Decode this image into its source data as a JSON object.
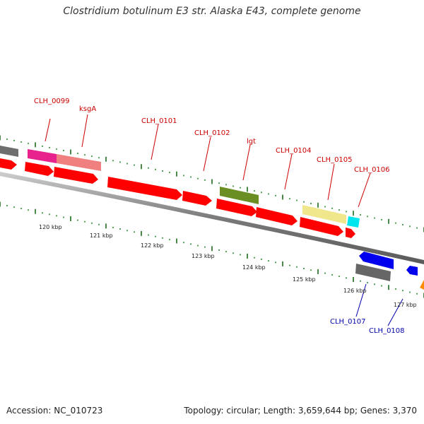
{
  "title": "Clostridium botulinum E3 str. Alaska E43, complete genome",
  "footer": {
    "accession": "Accession: NC_010723",
    "summary": "Topology: circular; Length: 3,659,644 bp; Genes: 3,370"
  },
  "colors": {
    "label_forward": "#cc0000",
    "label_reverse": "#0000aa",
    "backbone": "#8a8a8a",
    "tick_minor": "#2e8b2e",
    "tick_major": "#1a6b1a"
  },
  "genes": [
    {
      "name": "CLH_0099",
      "strand": "forward",
      "color": "#e8228c"
    },
    {
      "name": "ksgA",
      "strand": "forward",
      "color": "#f08080"
    },
    {
      "name": "CLH_0101",
      "strand": "forward",
      "color": "#ff0000"
    },
    {
      "name": "CLH_0102",
      "strand": "forward",
      "color": "#ff0000"
    },
    {
      "name": "lgt",
      "strand": "forward",
      "color": "#6b8e23"
    },
    {
      "name": "CLH_0104",
      "strand": "forward",
      "color": "#ff0000"
    },
    {
      "name": "CLH_0105",
      "strand": "forward",
      "color": "#f0e68c"
    },
    {
      "name": "CLH_0106",
      "strand": "forward",
      "color": "#00e5ee"
    },
    {
      "name": "CLH_0107",
      "strand": "reverse",
      "color": "#666666"
    },
    {
      "name": "CLH_0108",
      "strand": "reverse",
      "color": "#0000ee"
    }
  ],
  "kbp_labels": [
    "120 kbp",
    "121 kbp",
    "122 kbp",
    "123 kbp",
    "124 kbp",
    "125 kbp",
    "126 kbp",
    "127 kbp"
  ]
}
